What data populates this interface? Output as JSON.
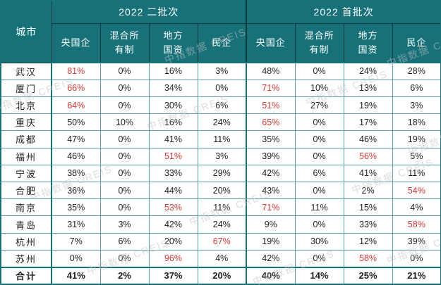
{
  "chart_data": {
    "type": "table",
    "row_header": "城市",
    "column_groups": [
      {
        "label": "2022 二批次"
      },
      {
        "label": "2022 首批次"
      }
    ],
    "sub_columns": [
      "央国企",
      "混合所\n有制",
      "地方\n国资",
      "民企"
    ],
    "rows": [
      {
        "city": "武汉",
        "values": [
          "81%",
          "0%",
          "16%",
          "3%",
          "48%",
          "0%",
          "24%",
          "28%"
        ],
        "red_indices": [
          0
        ]
      },
      {
        "city": "厦门",
        "values": [
          "66%",
          "0%",
          "34%",
          "0%",
          "71%",
          "10%",
          "13%",
          "6%"
        ],
        "red_indices": [
          0,
          4
        ]
      },
      {
        "city": "北京",
        "values": [
          "64%",
          "0%",
          "30%",
          "6%",
          "51%",
          "27%",
          "19%",
          "3%"
        ],
        "red_indices": [
          0,
          4
        ]
      },
      {
        "city": "重庆",
        "values": [
          "50%",
          "10%",
          "16%",
          "24%",
          "65%",
          "0%",
          "17%",
          "18%"
        ],
        "red_indices": [
          4
        ]
      },
      {
        "city": "成都",
        "values": [
          "47%",
          "0%",
          "41%",
          "11%",
          "35%",
          "0%",
          "46%",
          "19%"
        ],
        "red_indices": []
      },
      {
        "city": "福州",
        "values": [
          "46%",
          "0%",
          "51%",
          "3%",
          "39%",
          "0%",
          "56%",
          "5%"
        ],
        "red_indices": [
          2,
          6
        ]
      },
      {
        "city": "宁波",
        "values": [
          "38%",
          "0%",
          "33%",
          "29%",
          "42%",
          "6%",
          "41%",
          "11%"
        ],
        "red_indices": []
      },
      {
        "city": "合肥",
        "values": [
          "36%",
          "0%",
          "44%",
          "20%",
          "43%",
          "0%",
          "2%",
          "54%"
        ],
        "red_indices": [
          7
        ]
      },
      {
        "city": "南京",
        "values": [
          "35%",
          "0%",
          "53%",
          "11%",
          "71%",
          "11%",
          "15%",
          "4%"
        ],
        "red_indices": [
          2,
          4
        ]
      },
      {
        "city": "青岛",
        "values": [
          "31%",
          "3%",
          "42%",
          "24%",
          "9%",
          "0%",
          "33%",
          "58%"
        ],
        "red_indices": [
          7
        ]
      },
      {
        "city": "杭州",
        "values": [
          "7%",
          "6%",
          "20%",
          "67%",
          "19%",
          "30%",
          "12%",
          "39%"
        ],
        "red_indices": [
          3
        ]
      },
      {
        "city": "苏州",
        "values": [
          "0%",
          "0%",
          "96%",
          "4%",
          "42%",
          "0%",
          "58%",
          "0%"
        ],
        "red_indices": [
          2,
          6
        ]
      }
    ],
    "total_row": {
      "city": "合计",
      "values": [
        "41%",
        "2%",
        "37%",
        "20%",
        "40%",
        "14%",
        "25%",
        "21%"
      ],
      "red_indices": []
    }
  },
  "watermark": {
    "text": "中指数据 CREIS"
  },
  "colors": {
    "header_teal": "#177179",
    "grid_teal": "#5aa0a6",
    "header_line_dark": "#0b3b3e",
    "highlight_red": "#d63a35",
    "body_text": "#1f1f1f",
    "watermark_gray": "#c2c2c2"
  }
}
